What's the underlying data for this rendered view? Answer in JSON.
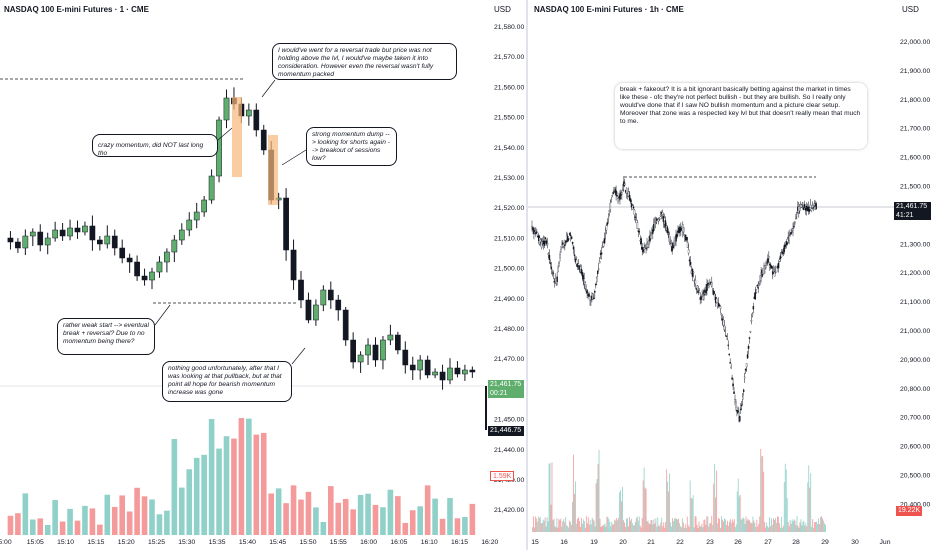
{
  "left_chart": {
    "title": "NASDAQ 100 E-mini Futures · 1 · CME",
    "currency": "USD",
    "price_ticks": [
      "21,580.00",
      "21,570.00",
      "21,560.00",
      "21,550.00",
      "21,540.00",
      "21,530.00",
      "21,520.00",
      "21,510.00",
      "21,500.00",
      "21,490.00",
      "21,480.00",
      "21,470.00",
      "21,460.00",
      "21,450.00",
      "21,440.00",
      "21,430.00",
      "21,420.00"
    ],
    "time_ticks": [
      "5:00",
      "15:05",
      "15:10",
      "15:15",
      "15:20",
      "15:25",
      "15:30",
      "15:35",
      "15:40",
      "15:45",
      "15:50",
      "15:55",
      "16:00",
      "16:05",
      "16:10",
      "16:15",
      "16:20"
    ],
    "last_price": "21,461.75",
    "countdown": "00:21",
    "low_price": "21,446.75",
    "volume_label": "1.59K",
    "notes": [
      "I would've went for a reversal trade but price was not holding above the lvl, I would've maybe taken it into consideration. However even the reversal wasn't fully momentum packed",
      "crazy momentum, did NOT last long tho",
      "strong momentum dump --> looking for shorts again --> breakout of sessions low?",
      "rather weak start --> eventual break + reversal? Due to no momentum being there?",
      "nothing good unfortunately, after that I was looking at that pullback, but at that point all hope for bearish momentum increase was gone"
    ],
    "bull_color": "#5fae6e",
    "bear_color": "#131722",
    "vol_bull_color": "#8fd0c8",
    "vol_bear_color": "#f49a9a",
    "highlight_color": "#f7b77a"
  },
  "right_chart": {
    "title": "NASDAQ 100 E-mini Futures · 1h · CME",
    "currency": "USD",
    "price_ticks": [
      "22,000.00",
      "21,900.00",
      "21,800.00",
      "21,700.00",
      "21,600.00",
      "21,500.00",
      "21,400.00",
      "21,300.00",
      "21,200.00",
      "21,100.00",
      "21,000.00",
      "20,900.00",
      "20,800.00",
      "20,700.00",
      "20,600.00",
      "20,500.00",
      "20,400.00"
    ],
    "time_ticks": [
      "15",
      "16",
      "19",
      "20",
      "21",
      "22",
      "23",
      "26",
      "27",
      "28",
      "29",
      "30",
      "Jun"
    ],
    "last_price": "21,461.75",
    "countdown": "41:21",
    "volume_label": "19.22K",
    "note": "break + fakeout? It is a bit ignorant basically betting against the market in times like these - ofc they're not perfect bullish - but they are bullish. So I really only would've done that if I saw NO bullish momentum and a picture clear setup. Moreover that zone was a respected key lvl but that doesn't really mean that much to me."
  }
}
